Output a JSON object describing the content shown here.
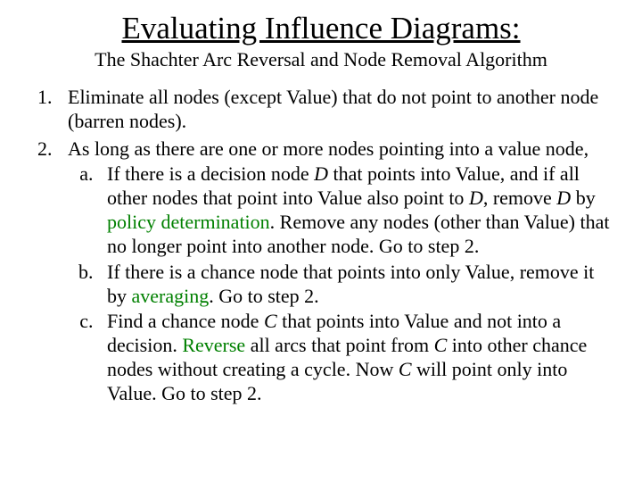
{
  "title": "Evaluating Influence Diagrams:",
  "subtitle": "The Shachter Arc Reversal and Node Removal Algorithm",
  "colors": {
    "text": "#000000",
    "highlight": "#008000",
    "background": "#ffffff"
  },
  "typography": {
    "title_fontsize": 35,
    "subtitle_fontsize": 22,
    "body_fontsize": 22,
    "font_family": "Times New Roman"
  },
  "items": {
    "one": "Eliminate all nodes (except Value) that do not point to another node (barren nodes).",
    "two_intro": "As long as there are one or more nodes pointing into a value node,",
    "two_a_pre": "If there is a decision node ",
    "two_a_D1": "D",
    "two_a_mid1": " that points into Value, and if all other nodes that point into Value also point to ",
    "two_a_D2": "D",
    "two_a_mid2": ", remove ",
    "two_a_D3": "D",
    "two_a_mid3": " by ",
    "two_a_hl": "policy determination",
    "two_a_post": ".  Remove any nodes (other than Value) that no longer point into another node. Go to step 2.",
    "two_b_pre": "If there is a chance node that points into only Value, remove it by ",
    "two_b_hl": "averaging",
    "two_b_post": ". Go to step 2.",
    "two_c_pre": "Find a chance node ",
    "two_c_C1": "C",
    "two_c_mid1": " that points into Value and not into a decision. ",
    "two_c_hl": "Reverse",
    "two_c_mid2": " all arcs that point from ",
    "two_c_C2": "C",
    "two_c_mid3": " into other chance nodes without creating a cycle. Now ",
    "two_c_C3": "C",
    "two_c_post": " will point only into Value. Go to step 2."
  }
}
